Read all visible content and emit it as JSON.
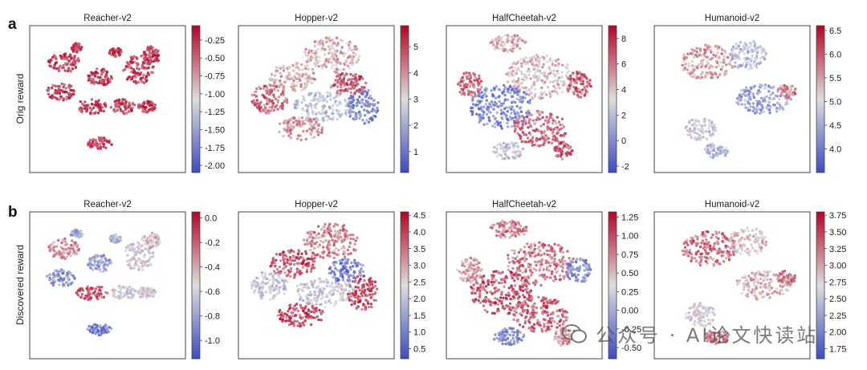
{
  "figure": {
    "row_labels": [
      "a",
      "b"
    ],
    "row_ylabels": [
      "Orig reward",
      "Discovered reward"
    ],
    "watermark": "公众号 · AI论文快读站"
  },
  "colors": {
    "low": "#3b4cc0",
    "mid": "#dddddd",
    "high": "#b40426",
    "frame": "#444444",
    "text": "#222222"
  },
  "chart_data": [
    {
      "type": "scatter",
      "title": "Reacher-v2",
      "ylabel": "Orig reward",
      "colorbar": {
        "range": [
          -2.1,
          -0.05
        ],
        "ticks": [
          "-0.25",
          "-0.50",
          "-0.75",
          "-1.00",
          "-1.25",
          "-1.50",
          "-1.75",
          "-2.00"
        ]
      }
    },
    {
      "type": "scatter",
      "title": "Hopper-v2",
      "colorbar": {
        "range": [
          0.2,
          5.8
        ],
        "ticks": [
          "5",
          "4",
          "3",
          "2",
          "1"
        ]
      }
    },
    {
      "type": "scatter",
      "title": "HalfCheetah-v2",
      "colorbar": {
        "range": [
          -2.5,
          9.0
        ],
        "ticks": [
          "8",
          "6",
          "4",
          "2",
          "0",
          "-2"
        ]
      }
    },
    {
      "type": "scatter",
      "title": "Humanoid-v2",
      "colorbar": {
        "range": [
          3.5,
          6.6
        ],
        "ticks": [
          "6.5",
          "6.0",
          "5.5",
          "5.0",
          "4.5",
          "4.0"
        ]
      }
    },
    {
      "type": "scatter",
      "title": "Reacher-v2",
      "ylabel": "Discovered reward",
      "colorbar": {
        "range": [
          -1.15,
          0.05
        ],
        "ticks": [
          "0.0",
          "-0.2",
          "-0.4",
          "-0.6",
          "-0.8",
          "-1.0"
        ]
      }
    },
    {
      "type": "scatter",
      "title": "Hopper-v2",
      "colorbar": {
        "range": [
          0.2,
          4.6
        ],
        "ticks": [
          "4.5",
          "4.0",
          "3.5",
          "3.0",
          "2.5",
          "2.0",
          "1.5",
          "1.0",
          "0.5"
        ]
      }
    },
    {
      "type": "scatter",
      "title": "HalfCheetah-v2",
      "colorbar": {
        "range": [
          -0.65,
          1.32
        ],
        "ticks": [
          "1.25",
          "1.00",
          "0.75",
          "0.50",
          "0.25",
          "0.00",
          "-0.25",
          "-0.50"
        ]
      }
    },
    {
      "type": "scatter",
      "title": "Humanoid-v2",
      "colorbar": {
        "range": [
          1.6,
          3.8
        ],
        "ticks": [
          "3.75",
          "3.50",
          "3.25",
          "3.00",
          "2.75",
          "2.50",
          "2.25",
          "2.00",
          "1.75"
        ]
      }
    }
  ]
}
